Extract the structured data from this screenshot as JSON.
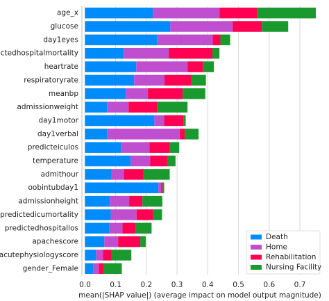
{
  "chart_data": {
    "type": "stacked_barh",
    "xlabel": "mean(|SHAP value|) (average impact on model output magnitude)",
    "categories": [
      "age_x",
      "glucose",
      "day1eyes",
      "predictedhospitalmortality",
      "heartrate",
      "respiratoryrate",
      "meanbp",
      "admissionweight",
      "day1motor",
      "day1verbal",
      "predicteiculos",
      "temperature",
      "admithour",
      "oobintubday1",
      "admissionheight",
      "predictedicumortality",
      "predictedhospitallos",
      "apachescore",
      "acutephysiologyscore",
      "gender_Female"
    ],
    "series": [
      {
        "name": "Death",
        "color": "#008bfb",
        "values": [
          0.221,
          0.278,
          0.235,
          0.126,
          0.167,
          0.16,
          0.133,
          0.072,
          0.226,
          0.072,
          0.117,
          0.149,
          0.086,
          0.239,
          0.081,
          0.084,
          0.079,
          0.063,
          0.036,
          0.027
        ]
      },
      {
        "name": "Home",
        "color": "#c04fd0",
        "values": [
          0.217,
          0.203,
          0.181,
          0.147,
          0.167,
          0.099,
          0.072,
          0.07,
          0.032,
          0.237,
          0.093,
          0.063,
          0.041,
          0.009,
          0.063,
          0.084,
          0.043,
          0.045,
          0.023,
          0.018
        ]
      },
      {
        "name": "Rehabilitation",
        "color": "#ff0052",
        "values": [
          0.122,
          0.095,
          0.025,
          0.142,
          0.05,
          0.088,
          0.113,
          0.093,
          0.063,
          0.016,
          0.065,
          0.056,
          0.063,
          0.005,
          0.043,
          0.054,
          0.043,
          0.072,
          0.027,
          0.016
        ]
      },
      {
        "name": "Nursing Facility",
        "color": "#1a9a2e",
        "values": [
          0.192,
          0.086,
          0.032,
          0.023,
          0.036,
          0.047,
          0.074,
          0.099,
          0.007,
          0.045,
          0.032,
          0.027,
          0.086,
          0.005,
          0.065,
          0.029,
          0.052,
          0.018,
          0.065,
          0.059
        ]
      }
    ],
    "xlim": [
      -0.01,
      0.77
    ],
    "xticks": [
      {
        "value": 0,
        "label": "0.0"
      },
      0.1,
      0.2,
      0.3,
      0.4,
      0.5,
      0.6,
      0.7
    ],
    "grid": true,
    "legend": "lower right"
  }
}
